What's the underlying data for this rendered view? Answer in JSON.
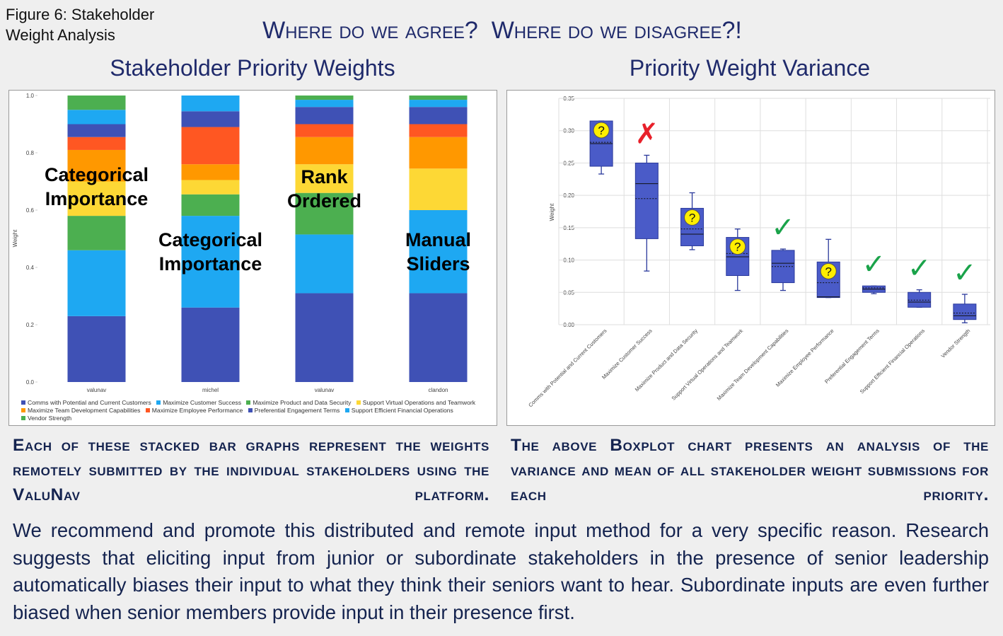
{
  "figure_label": "Figure 6: Stakeholder Weight Analysis",
  "headline": "Where do we agree?  Where do we disagree?!",
  "chart_data": [
    {
      "type": "stacked_bar",
      "title": "Stakeholder Priority Weights",
      "y_label": "Weight",
      "categories": [
        "valunav",
        "michel",
        "valunav",
        "clandon"
      ],
      "ylim": [
        0,
        1
      ],
      "yticks": [
        {
          "value": 0,
          "label": "0.0"
        },
        {
          "value": 0.2,
          "label": "0.2"
        },
        {
          "value": 0.4,
          "label": "0.4"
        },
        {
          "value": 0.6,
          "label": "0.6"
        },
        {
          "value": 0.8,
          "label": "0.8"
        },
        {
          "value": 1,
          "label": "1.0"
        }
      ],
      "series": [
        {
          "name": "Comms with Potential and Current Customers",
          "color": "#3f51b5",
          "values": [
            0.23,
            0.26,
            0.31,
            0.31
          ]
        },
        {
          "name": "Maximize Customer Success",
          "color": "#1ea8f2",
          "values": [
            0.23,
            0.32,
            0.205,
            0.29
          ]
        },
        {
          "name": "Maximize Product and Data Security",
          "color": "#4caf50",
          "values": [
            0.12,
            0.075,
            0.145,
            0
          ]
        },
        {
          "name": "Support Virtual Operations and Teamwork",
          "color": "#fdd835",
          "values": [
            0.12,
            0.05,
            0.1,
            0.145
          ]
        },
        {
          "name": "Maximize Team Development Capabilities",
          "color": "#ff9800",
          "values": [
            0.11,
            0.055,
            0.095,
            0.11
          ]
        },
        {
          "name": "Maximize Employee Performance",
          "color": "#ff5722",
          "values": [
            0.045,
            0.13,
            0.045,
            0.045
          ]
        },
        {
          "name": "Preferential Engagement Terms",
          "color": "#3f51b5",
          "values": [
            0.045,
            0.055,
            0.06,
            0.06
          ]
        },
        {
          "name": "Support Efficient Financial Operations",
          "color": "#1ea8f2",
          "values": [
            0.05,
            0.055,
            0.025,
            0.025
          ]
        },
        {
          "name": "Vendor Strength",
          "color": "#4caf50",
          "values": [
            0.05,
            0,
            0.015,
            0.015
          ]
        }
      ],
      "bar_annotations": [
        "Categorical Importance",
        "Categorical Importance",
        "Rank Ordered",
        "Manual Sliders"
      ]
    },
    {
      "type": "box",
      "title": "Priority Weight Variance",
      "y_label": "Weight",
      "categories": [
        "Comms with Potential and Current Customers",
        "Maximize Customer Success",
        "Maximize Product and Data Security",
        "Support Virtual Operations and Teamwork",
        "Maximize Team Development Capabilities",
        "Maximize Employee Performance",
        "Preferential Engagement Terms",
        "Support Efficient Financial Operations",
        "Vendor Strength"
      ],
      "ylim": [
        0,
        0.35
      ],
      "yticks": [
        {
          "value": 0,
          "label": "0.00"
        },
        {
          "value": 0.05,
          "label": "0.05"
        },
        {
          "value": 0.1,
          "label": "0.10"
        },
        {
          "value": 0.15,
          "label": "0.15"
        },
        {
          "value": 0.2,
          "label": "0.20"
        },
        {
          "value": 0.25,
          "label": "0.25"
        },
        {
          "value": 0.3,
          "label": "0.30"
        },
        {
          "value": 0.35,
          "label": "0.35"
        }
      ],
      "grid": true,
      "color": "#4a5bc8",
      "min": [
        0.233,
        0.083,
        0.116,
        0.053,
        0.053,
        0.042,
        0.048,
        0.027,
        0.003
      ],
      "q1": [
        0.245,
        0.133,
        0.122,
        0.076,
        0.065,
        0.042,
        0.05,
        0.027,
        0.008
      ],
      "median": [
        0.28,
        0.218,
        0.14,
        0.105,
        0.095,
        0.043,
        0.055,
        0.035,
        0.014
      ],
      "mean": [
        0.282,
        0.195,
        0.148,
        0.11,
        0.09,
        0.065,
        0.057,
        0.038,
        0.018
      ],
      "q3": [
        0.315,
        0.25,
        0.18,
        0.135,
        0.115,
        0.097,
        0.06,
        0.05,
        0.032
      ],
      "max": [
        0.315,
        0.262,
        0.204,
        0.148,
        0.117,
        0.132,
        0.06,
        0.054,
        0.047
      ],
      "annotations": [
        {
          "label": "?",
          "color": "#ffee00",
          "badge": true
        },
        {
          "label": "✗",
          "color": "#e8202a",
          "badge": false
        },
        {
          "label": "?",
          "color": "#ffee00",
          "badge": true
        },
        {
          "label": "?",
          "color": "#ffee00",
          "badge": true
        },
        {
          "label": "✓",
          "color": "#1aa34a",
          "badge": false
        },
        {
          "label": "?",
          "color": "#ffee00",
          "badge": true
        },
        {
          "label": "✓",
          "color": "#1aa34a",
          "badge": false
        },
        {
          "label": "✓",
          "color": "#1aa34a",
          "badge": false
        },
        {
          "label": "✓",
          "color": "#1aa34a",
          "badge": false
        }
      ]
    }
  ],
  "captions": [
    "Each of these stacked bar graphs represent the weights remotely submitted by the individual stakeholders using the ValuNav platform.",
    "The above Boxplot chart presents an analysis of the variance and mean of all stakeholder weight submissions for each priority."
  ],
  "paragraph": "We recommend and promote this distributed and remote input method for a very specific reason. Research suggests that eliciting input from junior or subordinate stakeholders in the presence of senior leadership automatically biases their input to what they think their seniors want to hear.  Subordinate inputs are even further biased when senior members provide input in their presence first."
}
